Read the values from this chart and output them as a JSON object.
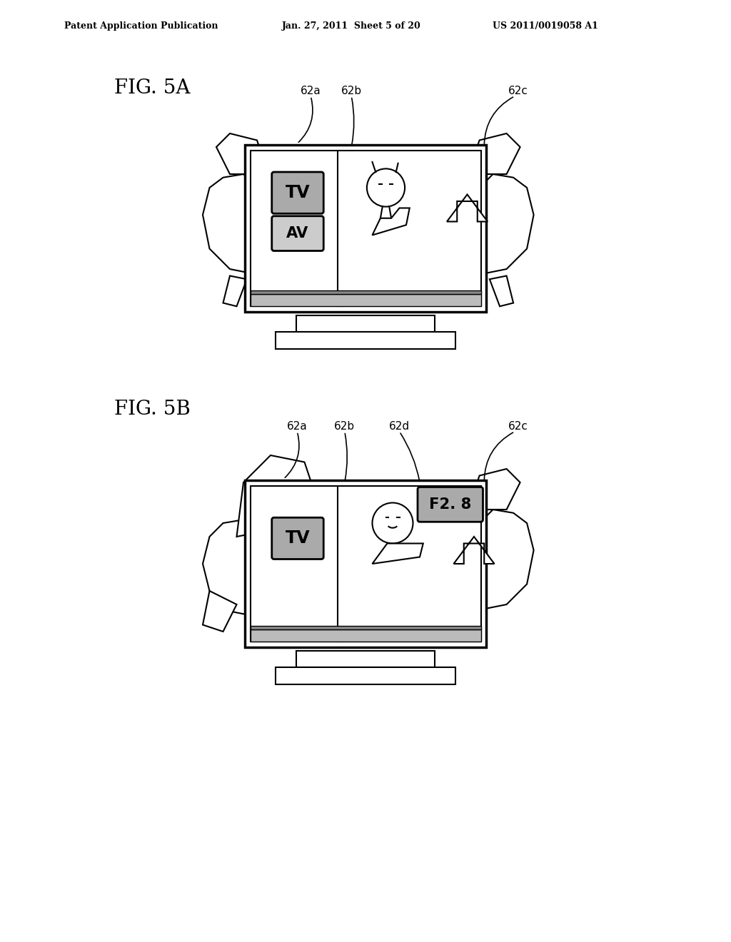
{
  "bg_color": "#ffffff",
  "header_text_left": "Patent Application Publication",
  "header_text_mid": "Jan. 27, 2011  Sheet 5 of 20",
  "header_text_right": "US 2011/0019058 A1",
  "fig5a_label": "FIG. 5A",
  "fig5b_label": "FIG. 5B",
  "label_62a": "62a",
  "label_62b": "62b",
  "label_62c": "62c",
  "label_62d": "62d",
  "tv_label": "TV",
  "av_label": "AV",
  "f28_label": "F2. 8",
  "line_color": "#000000",
  "gray_color": "#aaaaaa",
  "light_gray": "#cccccc",
  "dark_gray": "#888888"
}
